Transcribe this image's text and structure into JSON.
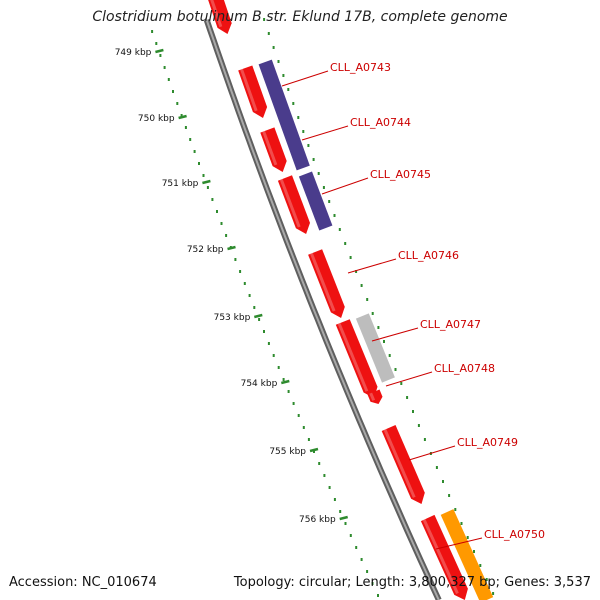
{
  "title": "Clostridium botulinum B str. Eklund 17B, complete genome",
  "footer": {
    "accession": "Accession: NC_010674",
    "topology": "Topology: circular; Length: 3,800,327 bp; Genes: 3,537"
  },
  "colors": {
    "backbone": "#808080",
    "ruler": "#2e8b2e",
    "gene_forward": "#ee1111",
    "gene_purple": "#4a3c8c",
    "gene_gray": "#bdbdbd",
    "gene_orange": "#ff9900",
    "label": "#cc0000",
    "leader": "#cc0000"
  },
  "ruler": {
    "tick_labels": [
      "749 kbp",
      "750 kbp",
      "751 kbp",
      "752 kbp",
      "753 kbp",
      "754 kbp",
      "755 kbp",
      "756 kbp"
    ]
  },
  "genes": [
    {
      "label": "CLL_A0743"
    },
    {
      "label": "CLL_A0744"
    },
    {
      "label": "CLL_A0745"
    },
    {
      "label": "CLL_A0746"
    },
    {
      "label": "CLL_A0747"
    },
    {
      "label": "CLL_A0748"
    },
    {
      "label": "CLL_A0749"
    },
    {
      "label": "CLL_A0750"
    }
  ]
}
